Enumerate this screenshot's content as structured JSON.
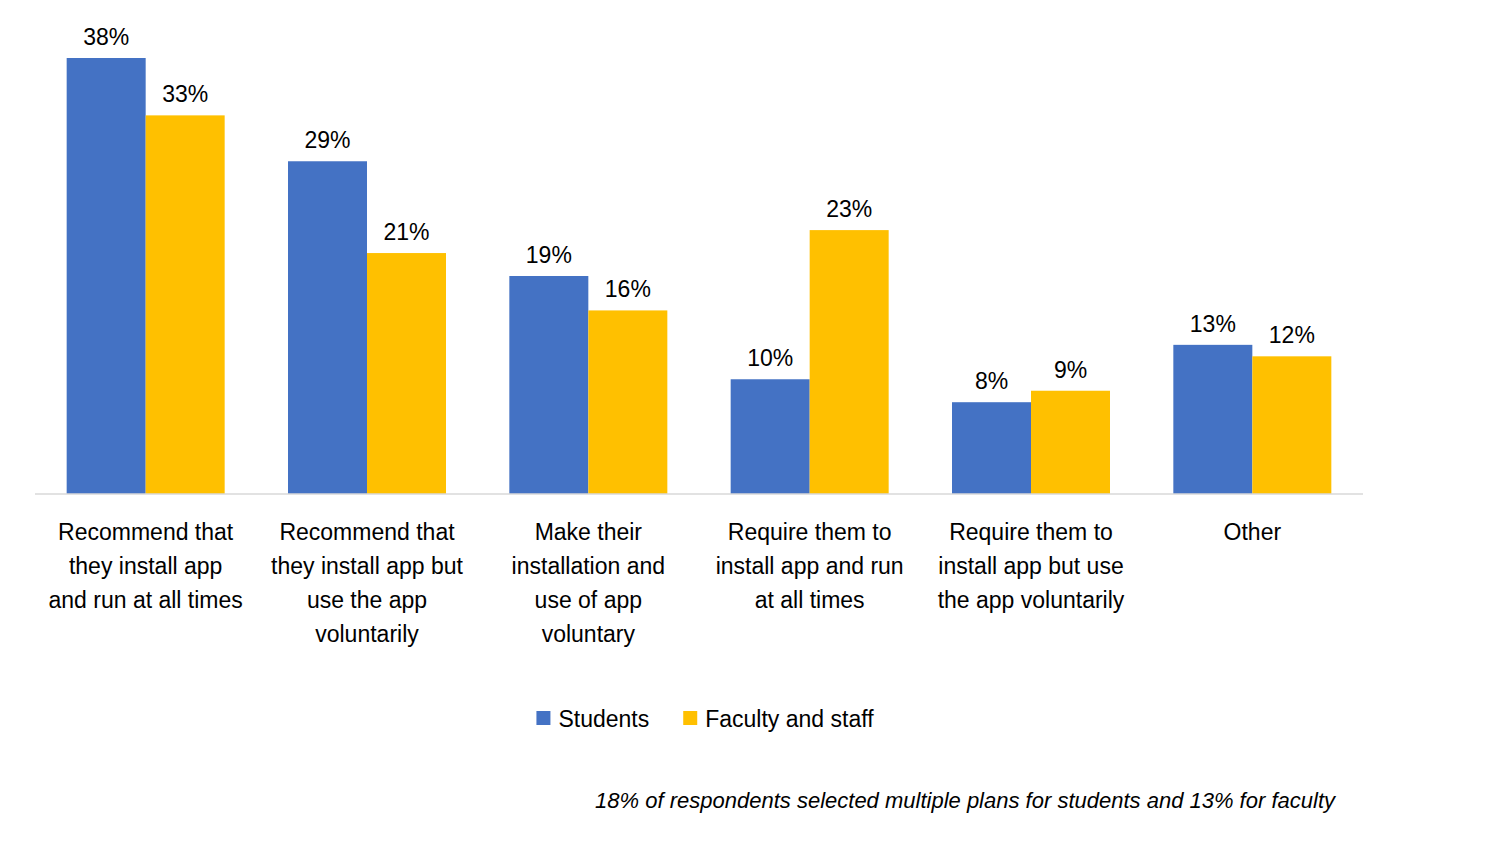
{
  "chart_data": {
    "type": "bar",
    "categories": [
      "Recommend that\nthey install app\nand run at all times",
      "Recommend that\nthey install app but\nuse the app\nvoluntarily",
      "Make their\ninstallation and\nuse of app\nvoluntary",
      "Require them to\ninstall app and run\nat all times",
      "Require them to\ninstall app but use\nthe app voluntarily",
      "Other"
    ],
    "series": [
      {
        "name": "Students",
        "color": "#4472c4",
        "values": [
          38,
          29,
          19,
          10,
          8,
          13
        ],
        "value_labels": [
          "38%",
          "29%",
          "19%",
          "10%",
          "8%",
          "13%"
        ]
      },
      {
        "name": "Faculty and staff",
        "color": "#ffc000",
        "values": [
          33,
          21,
          16,
          23,
          9,
          12
        ],
        "value_labels": [
          "33%",
          "21%",
          "16%",
          "23%",
          "9%",
          "12%"
        ]
      }
    ],
    "ylim": [
      0,
      38
    ],
    "data_labels": true,
    "tick_labels": "x",
    "grid": false,
    "legend": "bottom",
    "annotations": [
      "18% of respondents selected multiple plans for students and 13% for faculty"
    ]
  }
}
